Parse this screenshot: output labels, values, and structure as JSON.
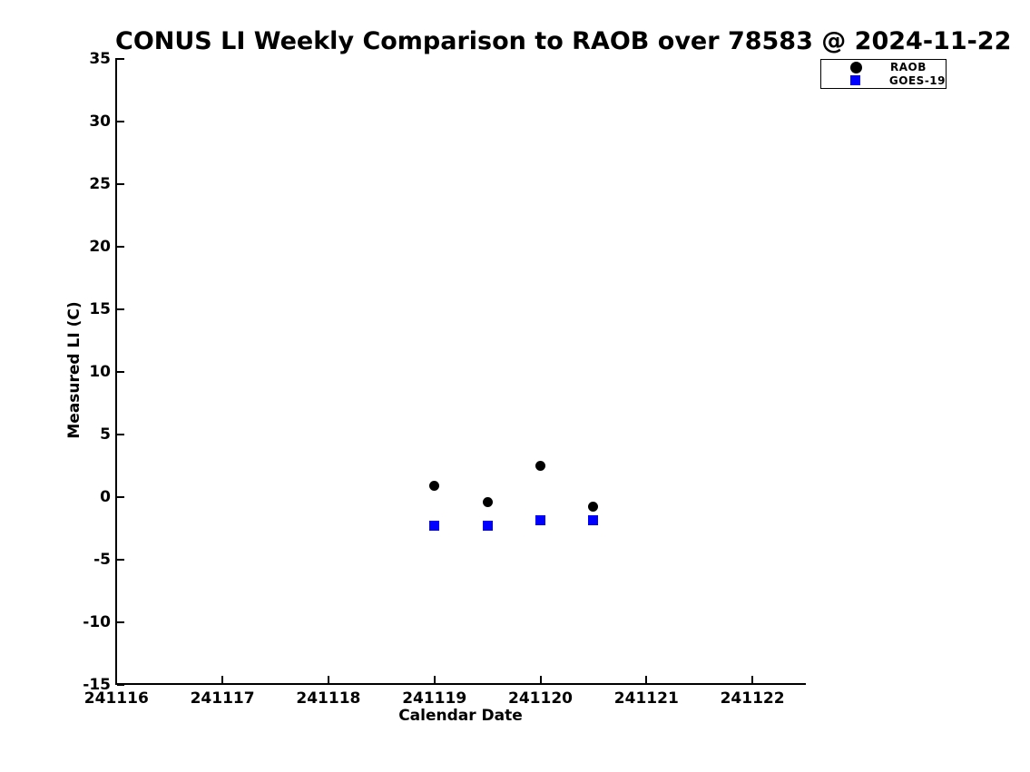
{
  "title": "CONUS LI Weekly Comparison to RAOB over 78583 @ 2024-11-22",
  "colors": {
    "background": "#ffffff",
    "axis": "#000000",
    "raob": "#000000",
    "goes19": "#0000ff"
  },
  "legend": {
    "position": "upper-right",
    "entries": [
      {
        "label": "RAOB",
        "marker": "circle",
        "color": "#000000"
      },
      {
        "label": "GOES-19",
        "marker": "square",
        "color": "#0000ff"
      }
    ]
  },
  "chart_data": {
    "type": "scatter",
    "title": "CONUS LI Weekly Comparison to RAOB over 78583 @ 2024-11-22",
    "xlabel": "Calendar Date",
    "ylabel": "Measured LI (C)",
    "xlim": [
      241116,
      241122.5
    ],
    "ylim": [
      -15,
      35
    ],
    "x_ticks": [
      241116,
      241117,
      241118,
      241119,
      241120,
      241121,
      241122
    ],
    "y_ticks": [
      35,
      30,
      25,
      20,
      15,
      10,
      5,
      0,
      -5,
      -10,
      -15
    ],
    "grid": false,
    "legend_position": "upper right",
    "series": [
      {
        "name": "RAOB",
        "marker": "circle",
        "color": "#000000",
        "points": [
          [
            241119.0,
            0.9
          ],
          [
            241119.5,
            -0.45
          ],
          [
            241120.0,
            2.5
          ],
          [
            241120.5,
            -0.8
          ]
        ]
      },
      {
        "name": "GOES-19",
        "marker": "square",
        "color": "#0000ff",
        "points": [
          [
            241119.0,
            -2.3
          ],
          [
            241119.5,
            -2.3
          ],
          [
            241120.0,
            -1.85
          ],
          [
            241120.5,
            -1.9
          ]
        ]
      }
    ]
  }
}
